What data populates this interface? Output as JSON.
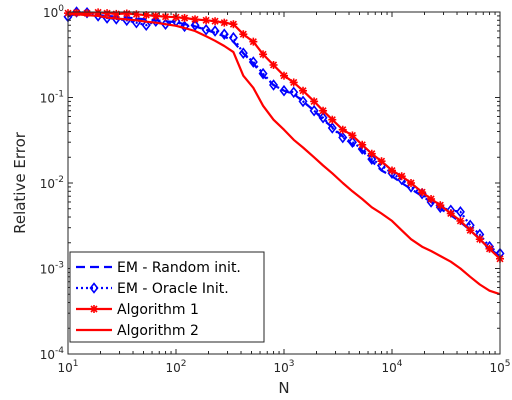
{
  "chart_data": {
    "type": "line",
    "title": "",
    "xlabel": "N",
    "ylabel": "Relative Error",
    "x_scale": "log",
    "y_scale": "log",
    "xlim": [
      10,
      100000
    ],
    "ylim": [
      0.0001,
      1
    ],
    "x_ticks": [
      {
        "base": "10",
        "exp": "1"
      },
      {
        "base": "10",
        "exp": "2"
      },
      {
        "base": "10",
        "exp": "3"
      },
      {
        "base": "10",
        "exp": "4"
      },
      {
        "base": "10",
        "exp": "5"
      }
    ],
    "y_ticks": [
      {
        "base": "10",
        "exp": "-4"
      },
      {
        "base": "10",
        "exp": "-3"
      },
      {
        "base": "10",
        "exp": "-2"
      },
      {
        "base": "10",
        "exp": "-1"
      },
      {
        "base": "10",
        "exp": "0"
      }
    ],
    "grid": false,
    "legend_position": "bottom-left",
    "series": [
      {
        "name": "EM - Random init.",
        "color": "#0000ff",
        "style": "dashed",
        "marker": "none",
        "x": [
          10,
          12,
          15,
          19,
          23,
          28,
          35,
          43,
          53,
          65,
          80,
          100,
          120,
          150,
          190,
          230,
          280,
          340,
          420,
          520,
          640,
          800,
          1000,
          1230,
          1500,
          1900,
          2300,
          2800,
          3500,
          4300,
          5300,
          6500,
          8000,
          10000,
          12300,
          15000,
          19000,
          23000,
          28000,
          35000,
          43000,
          53000,
          65000,
          80000,
          100000
        ],
        "y": [
          0.9,
          0.95,
          0.93,
          0.92,
          0.9,
          0.88,
          0.86,
          0.84,
          0.82,
          0.8,
          0.78,
          0.76,
          0.72,
          0.68,
          0.62,
          0.57,
          0.52,
          0.45,
          0.33,
          0.25,
          0.18,
          0.14,
          0.12,
          0.11,
          0.09,
          0.07,
          0.055,
          0.045,
          0.035,
          0.028,
          0.024,
          0.018,
          0.014,
          0.012,
          0.01,
          0.0085,
          0.007,
          0.006,
          0.005,
          0.0042,
          0.0035,
          0.0028,
          0.0022,
          0.0017,
          0.0014
        ]
      },
      {
        "name": "EM - Oracle Init.",
        "color": "#0000ff",
        "style": "dotted",
        "marker": "diamond",
        "x": [
          10,
          12,
          15,
          19,
          23,
          28,
          35,
          43,
          53,
          65,
          80,
          100,
          120,
          150,
          190,
          230,
          280,
          340,
          420,
          520,
          640,
          800,
          1000,
          1230,
          1500,
          1900,
          2300,
          2800,
          3500,
          4300,
          5300,
          6500,
          8000,
          10000,
          12300,
          15000,
          19000,
          23000,
          28000,
          35000,
          43000,
          53000,
          65000,
          80000,
          100000
        ],
        "y": [
          0.88,
          1.0,
          0.98,
          0.9,
          0.85,
          0.83,
          0.8,
          0.75,
          0.7,
          0.78,
          0.72,
          0.78,
          0.68,
          0.7,
          0.62,
          0.6,
          0.55,
          0.5,
          0.33,
          0.26,
          0.19,
          0.14,
          0.12,
          0.115,
          0.09,
          0.07,
          0.058,
          0.044,
          0.034,
          0.03,
          0.025,
          0.019,
          0.016,
          0.013,
          0.011,
          0.009,
          0.0075,
          0.006,
          0.0052,
          0.0048,
          0.0046,
          0.0032,
          0.0025,
          0.0018,
          0.0015
        ]
      },
      {
        "name": "Algorithm 1",
        "color": "#ff0000",
        "style": "solid",
        "marker": "asterisk",
        "x": [
          10,
          12,
          15,
          19,
          23,
          28,
          35,
          43,
          53,
          65,
          80,
          100,
          120,
          150,
          190,
          230,
          280,
          340,
          420,
          520,
          640,
          800,
          1000,
          1230,
          1500,
          1900,
          2300,
          2800,
          3500,
          4300,
          5300,
          6500,
          8000,
          10000,
          12300,
          15000,
          19000,
          23000,
          28000,
          35000,
          43000,
          53000,
          65000,
          80000,
          100000
        ],
        "y": [
          0.97,
          0.98,
          0.97,
          0.99,
          0.97,
          0.95,
          0.96,
          0.94,
          0.92,
          0.9,
          0.88,
          0.87,
          0.85,
          0.82,
          0.8,
          0.78,
          0.75,
          0.72,
          0.55,
          0.45,
          0.32,
          0.24,
          0.18,
          0.15,
          0.12,
          0.09,
          0.07,
          0.055,
          0.042,
          0.036,
          0.028,
          0.022,
          0.018,
          0.014,
          0.012,
          0.01,
          0.0078,
          0.0065,
          0.0055,
          0.0044,
          0.0036,
          0.0028,
          0.0022,
          0.0017,
          0.0013
        ]
      },
      {
        "name": "Algorithm 2",
        "color": "#ff0000",
        "style": "solid",
        "marker": "none",
        "x": [
          10,
          12,
          15,
          19,
          23,
          28,
          35,
          43,
          53,
          65,
          80,
          100,
          120,
          150,
          190,
          230,
          280,
          340,
          420,
          520,
          640,
          800,
          1000,
          1230,
          1500,
          1900,
          2300,
          2800,
          3500,
          4300,
          5300,
          6500,
          8000,
          10000,
          12300,
          15000,
          19000,
          23000,
          28000,
          35000,
          43000,
          53000,
          65000,
          80000,
          100000
        ],
        "y": [
          0.95,
          0.94,
          0.92,
          0.9,
          0.86,
          0.84,
          0.82,
          0.8,
          0.77,
          0.75,
          0.72,
          0.69,
          0.65,
          0.6,
          0.52,
          0.46,
          0.4,
          0.34,
          0.18,
          0.13,
          0.08,
          0.055,
          0.042,
          0.032,
          0.026,
          0.02,
          0.016,
          0.013,
          0.01,
          0.008,
          0.0065,
          0.0052,
          0.0044,
          0.0036,
          0.0028,
          0.0022,
          0.0018,
          0.0016,
          0.0014,
          0.0012,
          0.001,
          0.0008,
          0.00065,
          0.00055,
          0.0005
        ]
      }
    ]
  }
}
